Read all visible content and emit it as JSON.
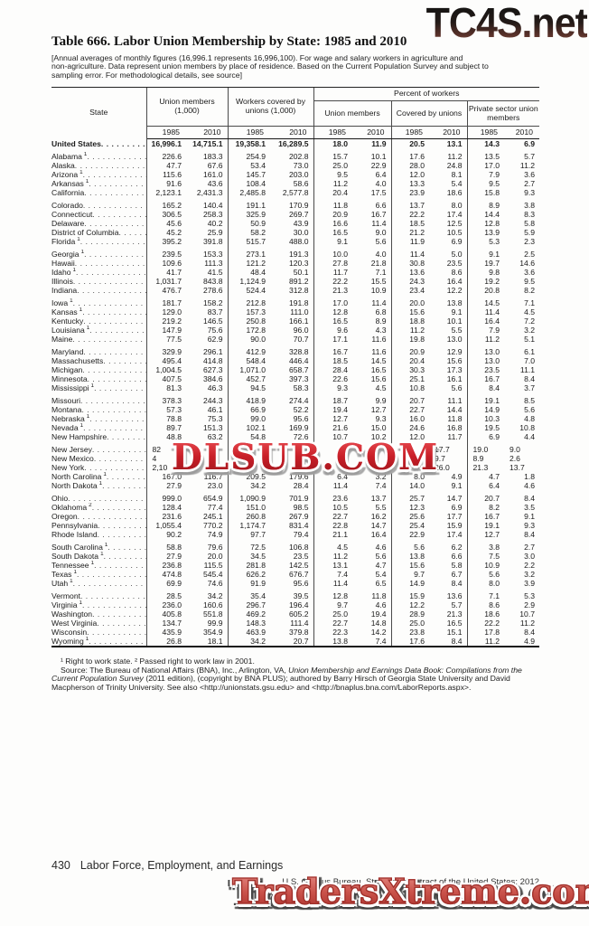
{
  "title": "Table 666. Labor Union Membership by State: 1985 and 2010",
  "headnote": "[Annual averages of monthly figures (16,996.1 represents 16,996,100). For wage and salary workers in agriculture and\nnon-agriculture. Data represent union members by place of residence. Based on the Current Population Survey and subject to\nsampling error. For methodological details, see source]",
  "table": {
    "headers": {
      "state": "State",
      "group1": "Union members\n(1,000)",
      "group2": "Workers covered by\nunions (1,000)",
      "percent": "Percent of workers",
      "sub1": "Union members",
      "sub2": "Covered by unions",
      "sub3": "Private sector union\nmembers",
      "years": [
        "1985",
        "2010"
      ]
    },
    "us_row": {
      "name": "United States",
      "values": [
        "16,996.1",
        "14,715.1",
        "19,358.1",
        "16,289.5",
        "18.0",
        "11.9",
        "20.5",
        "13.1",
        "14.3",
        "6.9"
      ]
    },
    "groups": [
      [
        {
          "name": "Alabama",
          "fn": "1",
          "values": [
            "226.6",
            "183.3",
            "254.9",
            "202.8",
            "15.7",
            "10.1",
            "17.6",
            "11.2",
            "13.5",
            "5.7"
          ]
        },
        {
          "name": "Alaska",
          "values": [
            "47.7",
            "67.6",
            "53.4",
            "73.0",
            "25.0",
            "22.9",
            "28.0",
            "24.8",
            "17.0",
            "11.2"
          ]
        },
        {
          "name": "Arizona",
          "fn": "1",
          "values": [
            "115.6",
            "161.0",
            "145.7",
            "203.0",
            "9.5",
            "6.4",
            "12.0",
            "8.1",
            "7.9",
            "3.6"
          ]
        },
        {
          "name": "Arkansas",
          "fn": "1",
          "values": [
            "91.6",
            "43.6",
            "108.4",
            "58.6",
            "11.2",
            "4.0",
            "13.3",
            "5.4",
            "9.5",
            "2.7"
          ]
        },
        {
          "name": "California",
          "values": [
            "2,123.1",
            "2,431.3",
            "2,485.8",
            "2,577.8",
            "20.4",
            "17.5",
            "23.9",
            "18.6",
            "15.8",
            "9.3"
          ]
        }
      ],
      [
        {
          "name": "Colorado",
          "values": [
            "165.2",
            "140.4",
            "191.1",
            "170.9",
            "11.8",
            "6.6",
            "13.7",
            "8.0",
            "8.9",
            "3.8"
          ]
        },
        {
          "name": "Connecticut",
          "values": [
            "306.5",
            "258.3",
            "325.9",
            "269.7",
            "20.9",
            "16.7",
            "22.2",
            "17.4",
            "14.4",
            "8.3"
          ]
        },
        {
          "name": "Delaware",
          "values": [
            "45.6",
            "40.2",
            "50.9",
            "43.9",
            "16.6",
            "11.4",
            "18.5",
            "12.5",
            "12.8",
            "5.8"
          ]
        },
        {
          "name": "District of Columbia",
          "values": [
            "45.2",
            "25.9",
            "58.2",
            "30.0",
            "16.5",
            "9.0",
            "21.2",
            "10.5",
            "13.9",
            "5.9"
          ]
        },
        {
          "name": "Florida",
          "fn": "1",
          "values": [
            "395.2",
            "391.8",
            "515.7",
            "488.0",
            "9.1",
            "5.6",
            "11.9",
            "6.9",
            "5.3",
            "2.3"
          ]
        }
      ],
      [
        {
          "name": "Georgia",
          "fn": "1",
          "values": [
            "239.5",
            "153.3",
            "273.1",
            "191.3",
            "10.0",
            "4.0",
            "11.4",
            "5.0",
            "9.1",
            "2.5"
          ]
        },
        {
          "name": "Hawaii",
          "values": [
            "109.6",
            "111.3",
            "121.2",
            "120.3",
            "27.8",
            "21.8",
            "30.8",
            "23.5",
            "19.7",
            "14.6"
          ]
        },
        {
          "name": "Idaho",
          "fn": "1",
          "values": [
            "41.7",
            "41.5",
            "48.4",
            "50.1",
            "11.7",
            "7.1",
            "13.6",
            "8.6",
            "9.8",
            "3.6"
          ]
        },
        {
          "name": "Illinois",
          "values": [
            "1,031.7",
            "843.8",
            "1,124.9",
            "891.2",
            "22.2",
            "15.5",
            "24.3",
            "16.4",
            "19.2",
            "9.5"
          ]
        },
        {
          "name": "Indiana",
          "values": [
            "476.7",
            "278.6",
            "524.4",
            "312.8",
            "21.3",
            "10.9",
            "23.4",
            "12.2",
            "20.8",
            "8.2"
          ]
        }
      ],
      [
        {
          "name": "Iowa",
          "fn": "1",
          "values": [
            "181.7",
            "158.2",
            "212.8",
            "191.8",
            "17.0",
            "11.4",
            "20.0",
            "13.8",
            "14.5",
            "7.1"
          ]
        },
        {
          "name": "Kansas",
          "fn": "1",
          "values": [
            "129.0",
            "83.7",
            "157.3",
            "111.0",
            "12.8",
            "6.8",
            "15.6",
            "9.1",
            "11.4",
            "4.5"
          ]
        },
        {
          "name": "Kentucky",
          "values": [
            "219.2",
            "146.5",
            "250.8",
            "166.1",
            "16.5",
            "8.9",
            "18.8",
            "10.1",
            "16.4",
            "7.2"
          ]
        },
        {
          "name": "Louisiana",
          "fn": "1",
          "values": [
            "147.9",
            "75.6",
            "172.8",
            "96.0",
            "9.6",
            "4.3",
            "11.2",
            "5.5",
            "7.9",
            "3.2"
          ]
        },
        {
          "name": "Maine",
          "values": [
            "77.5",
            "62.9",
            "90.0",
            "70.7",
            "17.1",
            "11.6",
            "19.8",
            "13.0",
            "11.2",
            "5.1"
          ]
        }
      ],
      [
        {
          "name": "Maryland",
          "values": [
            "329.9",
            "296.1",
            "412.9",
            "328.8",
            "16.7",
            "11.6",
            "20.9",
            "12.9",
            "13.0",
            "6.1"
          ]
        },
        {
          "name": "Massachusetts",
          "values": [
            "495.4",
            "414.8",
            "548.4",
            "446.4",
            "18.5",
            "14.5",
            "20.4",
            "15.6",
            "13.0",
            "7.0"
          ]
        },
        {
          "name": "Michigan",
          "values": [
            "1,004.5",
            "627.3",
            "1,071.0",
            "658.7",
            "28.4",
            "16.5",
            "30.3",
            "17.3",
            "23.5",
            "11.1"
          ]
        },
        {
          "name": "Minnesota",
          "values": [
            "407.5",
            "384.6",
            "452.7",
            "397.3",
            "22.6",
            "15.6",
            "25.1",
            "16.1",
            "16.7",
            "8.4"
          ]
        },
        {
          "name": "Mississippi",
          "fn": "1",
          "values": [
            "81.3",
            "46.3",
            "94.5",
            "58.3",
            "9.3",
            "4.5",
            "10.8",
            "5.6",
            "8.4",
            "3.7"
          ]
        }
      ],
      [
        {
          "name": "Missouri",
          "values": [
            "378.3",
            "244.3",
            "418.9",
            "274.4",
            "18.7",
            "9.9",
            "20.7",
            "11.1",
            "19.1",
            "8.5"
          ]
        },
        {
          "name": "Montana",
          "values": [
            "57.3",
            "46.1",
            "66.9",
            "52.2",
            "19.4",
            "12.7",
            "22.7",
            "14.4",
            "14.9",
            "5.6"
          ]
        },
        {
          "name": "Nebraska",
          "fn": "1",
          "values": [
            "78.8",
            "75.3",
            "99.0",
            "95.6",
            "12.7",
            "9.3",
            "16.0",
            "11.8",
            "10.3",
            "4.8"
          ]
        },
        {
          "name": "Nevada",
          "fn": "1",
          "values": [
            "89.7",
            "151.3",
            "102.1",
            "169.9",
            "21.6",
            "15.0",
            "24.6",
            "16.8",
            "19.5",
            "10.8"
          ]
        },
        {
          "name": "New Hampshire",
          "values": [
            "48.8",
            "63.2",
            "54.8",
            "72.6",
            "10.7",
            "10.2",
            "12.0",
            "11.7",
            "6.9",
            "4.4"
          ]
        }
      ],
      [
        {
          "name": "New Jersey",
          "occluded": true,
          "values": [
            "82",
            "",
            "",
            "",
            "",
            "",
            "",
            "17.7",
            "19.0",
            "9.0"
          ]
        },
        {
          "name": "New Mexico",
          "occluded": true,
          "values": [
            "4",
            "",
            "",
            "",
            "",
            "",
            "",
            "9.7",
            "8.9",
            "2.6"
          ]
        },
        {
          "name": "New York",
          "occluded": true,
          "values": [
            "2,10",
            "",
            "",
            "",
            "",
            "",
            "",
            "26.0",
            "21.3",
            "13.7"
          ]
        },
        {
          "name": "North Carolina",
          "fn": "1",
          "values": [
            "167.0",
            "116.7",
            "209.5",
            "179.6",
            "6.4",
            "3.2",
            "8.0",
            "4.9",
            "4.7",
            "1.8"
          ]
        },
        {
          "name": "North Dakota",
          "fn": "1",
          "values": [
            "27.9",
            "23.0",
            "34.2",
            "28.4",
            "11.4",
            "7.4",
            "14.0",
            "9.1",
            "6.4",
            "4.6"
          ]
        }
      ],
      [
        {
          "name": "Ohio",
          "values": [
            "999.0",
            "654.9",
            "1,090.9",
            "701.9",
            "23.6",
            "13.7",
            "25.7",
            "14.7",
            "20.7",
            "8.4"
          ]
        },
        {
          "name": "Oklahoma",
          "fn": "2",
          "values": [
            "128.4",
            "77.4",
            "151.0",
            "98.5",
            "10.5",
            "5.5",
            "12.3",
            "6.9",
            "8.2",
            "3.5"
          ]
        },
        {
          "name": "Oregon",
          "values": [
            "231.6",
            "245.1",
            "260.8",
            "267.9",
            "22.7",
            "16.2",
            "25.6",
            "17.7",
            "16.7",
            "9.1"
          ]
        },
        {
          "name": "Pennsylvania",
          "values": [
            "1,055.4",
            "770.2",
            "1,174.7",
            "831.4",
            "22.8",
            "14.7",
            "25.4",
            "15.9",
            "19.1",
            "9.3"
          ]
        },
        {
          "name": "Rhode Island",
          "values": [
            "90.2",
            "74.9",
            "97.7",
            "79.4",
            "21.1",
            "16.4",
            "22.9",
            "17.4",
            "12.7",
            "8.4"
          ]
        }
      ],
      [
        {
          "name": "South Carolina",
          "fn": "1",
          "values": [
            "58.8",
            "79.6",
            "72.5",
            "106.8",
            "4.5",
            "4.6",
            "5.6",
            "6.2",
            "3.8",
            "2.7"
          ]
        },
        {
          "name": "South Dakota",
          "fn": "1",
          "values": [
            "27.9",
            "20.0",
            "34.5",
            "23.5",
            "11.2",
            "5.6",
            "13.8",
            "6.6",
            "7.5",
            "3.0"
          ]
        },
        {
          "name": "Tennessee",
          "fn": "1",
          "values": [
            "236.8",
            "115.5",
            "281.8",
            "142.5",
            "13.1",
            "4.7",
            "15.6",
            "5.8",
            "10.9",
            "2.2"
          ]
        },
        {
          "name": "Texas",
          "fn": "1",
          "values": [
            "474.8",
            "545.4",
            "626.2",
            "676.7",
            "7.4",
            "5.4",
            "9.7",
            "6.7",
            "5.6",
            "3.2"
          ]
        },
        {
          "name": "Utah",
          "fn": "1",
          "values": [
            "69.9",
            "74.6",
            "91.9",
            "95.6",
            "11.4",
            "6.5",
            "14.9",
            "8.4",
            "8.0",
            "3.9"
          ]
        }
      ],
      [
        {
          "name": "Vermont",
          "values": [
            "28.5",
            "34.2",
            "35.4",
            "39.5",
            "12.8",
            "11.8",
            "15.9",
            "13.6",
            "7.1",
            "5.3"
          ]
        },
        {
          "name": "Virginia",
          "fn": "1",
          "values": [
            "236.0",
            "160.6",
            "296.7",
            "196.4",
            "9.7",
            "4.6",
            "12.2",
            "5.7",
            "8.6",
            "2.9"
          ]
        },
        {
          "name": "Washington",
          "values": [
            "405.8",
            "551.8",
            "469.2",
            "605.2",
            "25.0",
            "19.4",
            "28.9",
            "21.3",
            "18.6",
            "10.7"
          ]
        },
        {
          "name": "West Virginia",
          "values": [
            "134.7",
            "99.9",
            "148.3",
            "111.4",
            "22.7",
            "14.8",
            "25.0",
            "16.5",
            "22.2",
            "11.2"
          ]
        },
        {
          "name": "Wisconsin",
          "values": [
            "435.9",
            "354.9",
            "463.9",
            "379.8",
            "22.3",
            "14.2",
            "23.8",
            "15.1",
            "17.8",
            "8.4"
          ]
        },
        {
          "name": "Wyoming",
          "fn": "1",
          "values": [
            "26.8",
            "18.1",
            "34.2",
            "20.7",
            "13.8",
            "7.4",
            "17.6",
            "8.4",
            "11.2",
            "4.9"
          ]
        }
      ]
    ]
  },
  "footnotes": {
    "line1": "¹ Right to work state. ² Passed right to work law in 2001.",
    "source_pre": "Source: The Bureau of National Affairs (BNA), Inc., Arlington, VA, ",
    "source_italic": "Union Membership and Earnings Data Book: Compilations from the Current Population Survey",
    "source_post": " (2011 edition), (copyright by BNA PLUS); authored by Barry Hirsch of Georgia State University and David Macpherson of Trinity University. See also <http://unionstats.gsu.edu> and <http://bnaplus.bna.com/LaborReports.aspx>."
  },
  "footer": {
    "page_number": "430",
    "section": "Labor Force, Employment, and Earnings",
    "credit": "U.S. Census Bureau, Statistical Abstract of the United States: 2012"
  },
  "watermarks": {
    "top": "TC4S.net",
    "middle": "DLSUB.COM",
    "bottom": "TradersXtreme.com",
    "colors": {
      "middle_red": "#c2242c",
      "bottom_salmon": "#cb564f",
      "top_dark": "#241a17"
    }
  }
}
